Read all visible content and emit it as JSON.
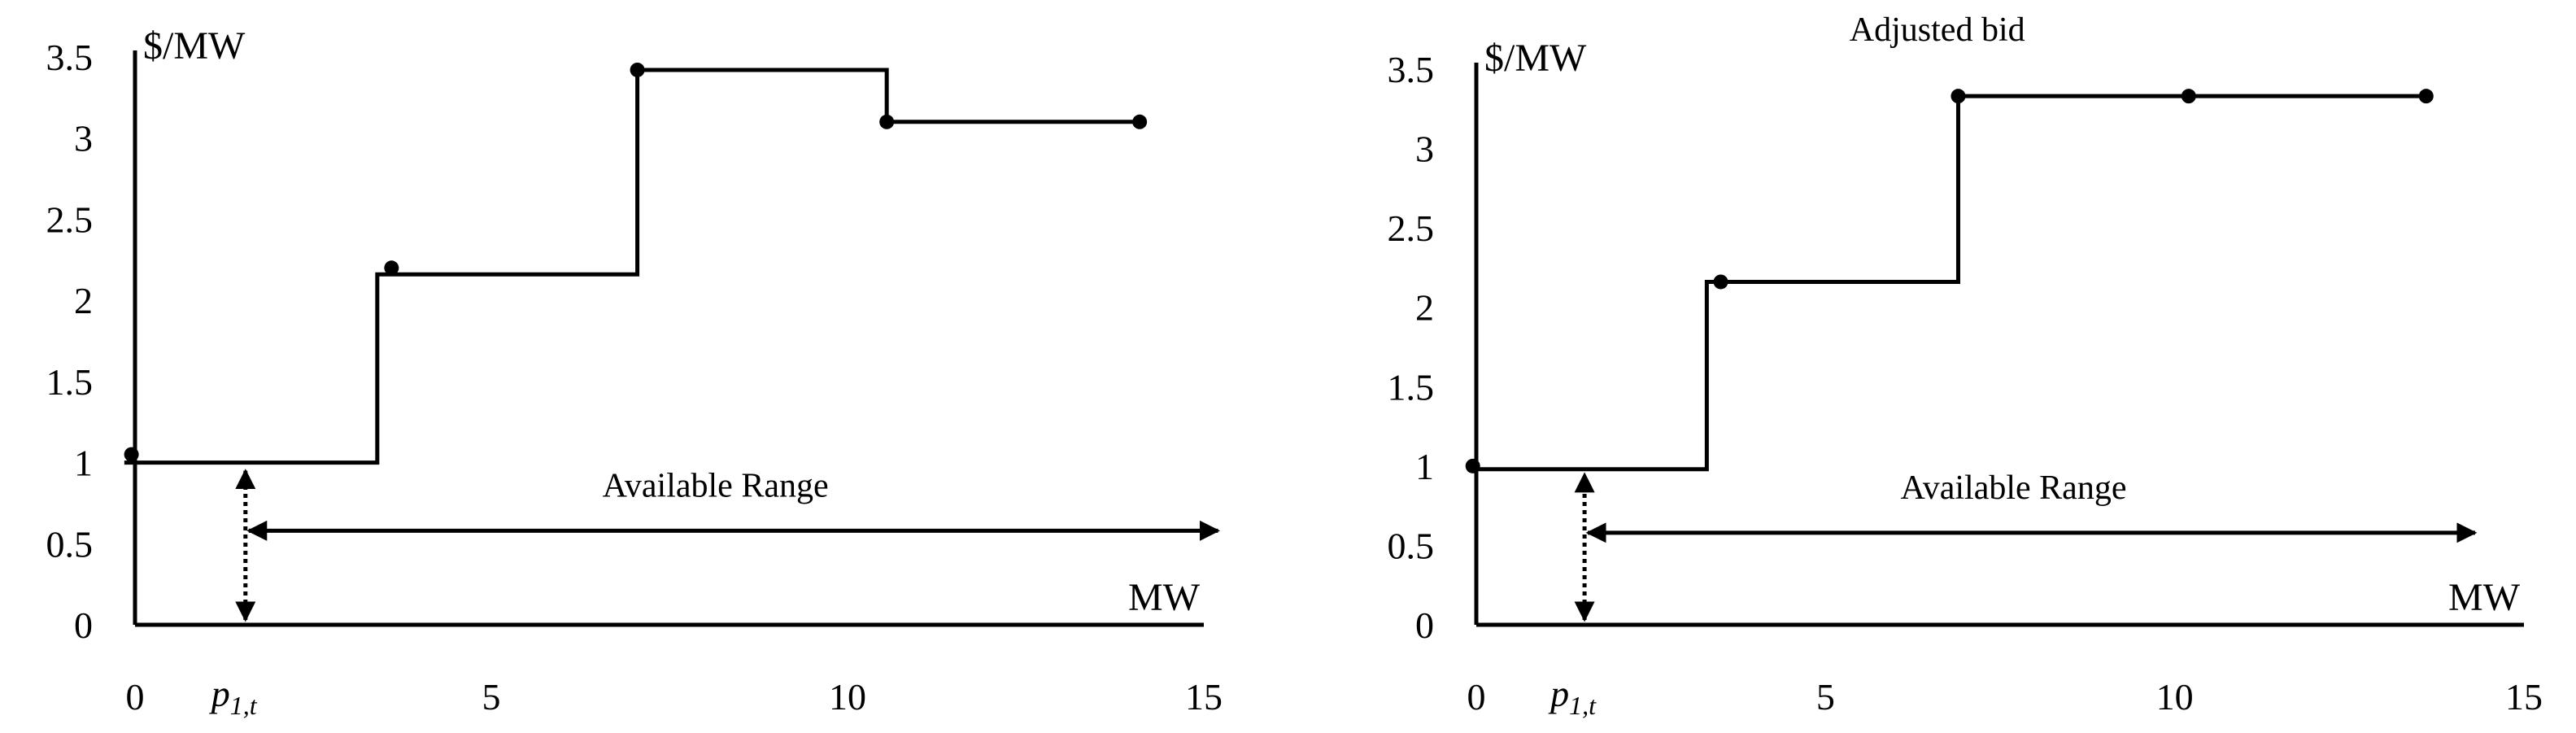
{
  "chart_data": [
    {
      "type": "step",
      "ylabel": "$/MW",
      "xlabel": "MW",
      "xlim": [
        0,
        15
      ],
      "ylim": [
        0,
        3.5
      ],
      "xticks": [
        "0",
        "5",
        "10",
        "15"
      ],
      "yticks": [
        "0",
        "0.5",
        "1",
        "1.5",
        "2",
        "2.5",
        "3",
        "3.5"
      ],
      "title": "",
      "marker_label": {
        "symbol": "p",
        "sub": "1,t"
      },
      "marker_x": 1.55,
      "range_label": "Available Range",
      "range_x": [
        1.55,
        15.2
      ],
      "range_y": 0.58,
      "steps": [
        {
          "x0": -0.15,
          "x1": 3.4,
          "y": 1.0
        },
        {
          "x0": 3.4,
          "x1": 7.05,
          "y": 2.16
        },
        {
          "x0": 7.05,
          "x1": 10.55,
          "y": 3.42
        },
        {
          "x0": 10.55,
          "x1": 14.1,
          "y": 3.1
        }
      ],
      "points": [
        {
          "x": -0.05,
          "y": 1.05
        },
        {
          "x": 3.6,
          "y": 2.2
        },
        {
          "x": 7.05,
          "y": 3.42
        },
        {
          "x": 10.55,
          "y": 3.1
        },
        {
          "x": 14.1,
          "y": 3.1
        }
      ]
    },
    {
      "type": "step",
      "title": "Adjusted bid",
      "ylabel": "$/MW",
      "xlabel": "MW",
      "xlim": [
        0,
        15
      ],
      "ylim": [
        0,
        3.5
      ],
      "xticks": [
        "0",
        "5",
        "10",
        "15"
      ],
      "yticks": [
        "0",
        "0.5",
        "1",
        "1.5",
        "2",
        "2.5",
        "3",
        "3.5"
      ],
      "marker_label": {
        "symbol": "p",
        "sub": "1,t"
      },
      "marker_x": 1.55,
      "range_label": "Available Range",
      "range_x": [
        1.55,
        14.3
      ],
      "range_y": 0.58,
      "steps": [
        {
          "x0": -0.1,
          "x1": 3.3,
          "y": 0.98
        },
        {
          "x0": 3.3,
          "x1": 6.9,
          "y": 2.16
        },
        {
          "x0": 6.9,
          "x1": 13.6,
          "y": 3.33
        }
      ],
      "points": [
        {
          "x": -0.05,
          "y": 1.0
        },
        {
          "x": 3.5,
          "y": 2.16
        },
        {
          "x": 6.9,
          "y": 3.33
        },
        {
          "x": 10.2,
          "y": 3.33
        },
        {
          "x": 13.6,
          "y": 3.33
        }
      ]
    }
  ]
}
